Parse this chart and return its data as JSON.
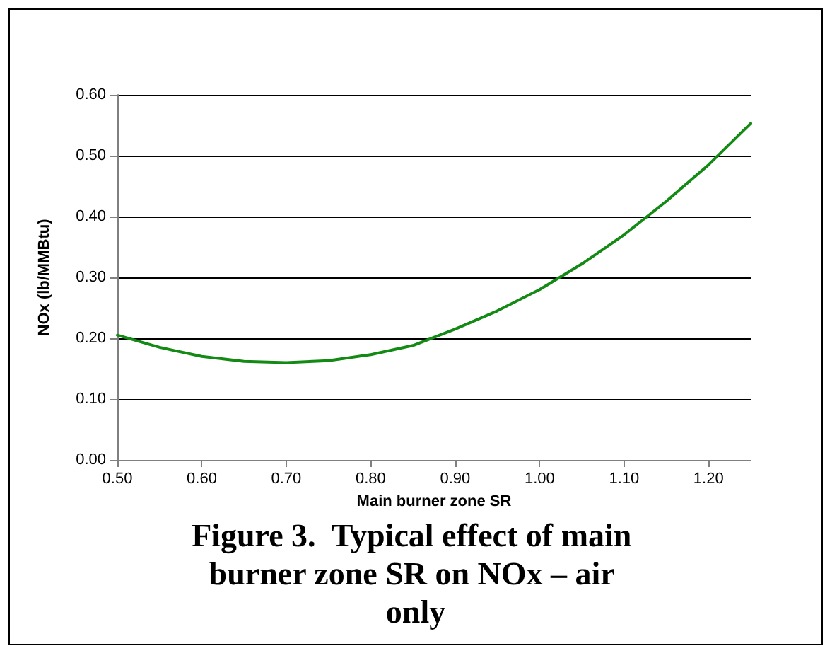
{
  "chart_data": {
    "type": "line",
    "title": "Figure 3.  Typical effect of main burner zone SR on NOx – air only",
    "xlabel": "Main burner zone SR",
    "ylabel": "NOx (lb/MMBtu)",
    "x": [
      0.5,
      0.55,
      0.6,
      0.65,
      0.7,
      0.75,
      0.8,
      0.85,
      0.9,
      0.95,
      1.0,
      1.05,
      1.1,
      1.15,
      1.2,
      1.25
    ],
    "series": [
      {
        "color": "#138a13",
        "values": [
          0.205,
          0.185,
          0.17,
          0.162,
          0.16,
          0.163,
          0.173,
          0.188,
          0.215,
          0.245,
          0.28,
          0.322,
          0.37,
          0.425,
          0.485,
          0.553
        ]
      }
    ],
    "xlim": [
      0.5,
      1.25
    ],
    "xticks": [
      {
        "value": 0.5,
        "label": "0.50"
      },
      {
        "value": 0.6,
        "label": "0.60"
      },
      {
        "value": 0.7,
        "label": "0.70"
      },
      {
        "value": 0.8,
        "label": "0.80"
      },
      {
        "value": 0.9,
        "label": "0.90"
      },
      {
        "value": 1.0,
        "label": "1.00"
      },
      {
        "value": 1.1,
        "label": "1.10"
      },
      {
        "value": 1.2,
        "label": "1.20"
      }
    ],
    "ylim": [
      0,
      0.6
    ],
    "yticks": [
      {
        "value": 0,
        "label": "0.00"
      },
      {
        "value": 0.1,
        "label": "0.10"
      },
      {
        "value": 0.2,
        "label": "0.20"
      },
      {
        "value": 0.3,
        "label": "0.30"
      },
      {
        "value": 0.4,
        "label": "0.40"
      },
      {
        "value": 0.5,
        "label": "0.50"
      },
      {
        "value": 0.6,
        "label": "0.60"
      }
    ],
    "grid": "y",
    "marker": "none",
    "line_style": "solid"
  }
}
